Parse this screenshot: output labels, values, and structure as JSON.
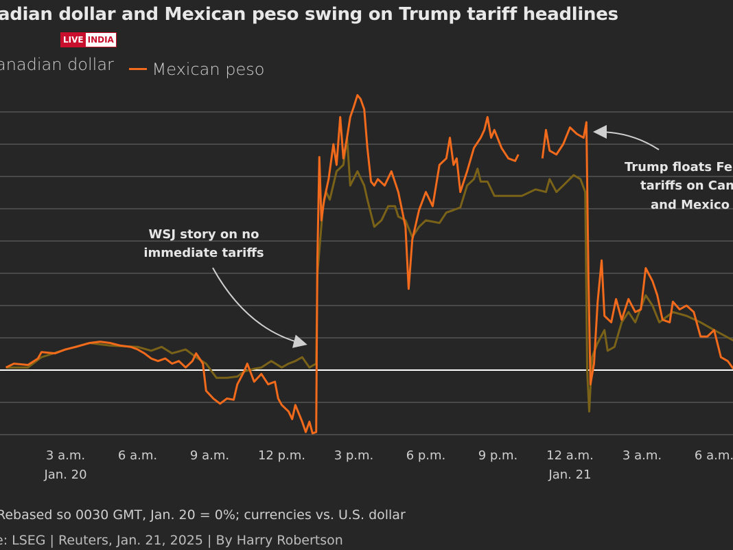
{
  "chart_data": {
    "type": "line",
    "title": "adian dollar and Mexican peso swing on Trump tariff headlines",
    "ylim": [
      -0.5,
      2.2
    ],
    "y_gridline_step": 0.25,
    "y_zero_line": true,
    "grid": true,
    "legend_placement": "top-left",
    "x_ticks": [
      {
        "t": "2025-01-20T03:00",
        "label": "3 a.m.",
        "sub": "Jan. 20"
      },
      {
        "t": "2025-01-20T06:00",
        "label": "6 a.m."
      },
      {
        "t": "2025-01-20T09:00",
        "label": "9 a.m."
      },
      {
        "t": "2025-01-20T12:00",
        "label": "12 p.m."
      },
      {
        "t": "2025-01-20T15:00",
        "label": "3 p.m."
      },
      {
        "t": "2025-01-20T18:00",
        "label": "6 p.m."
      },
      {
        "t": "2025-01-20T21:00",
        "label": "9 p.m."
      },
      {
        "t": "2025-01-21T00:00",
        "label": "12 a.m.",
        "sub": "Jan. 21"
      },
      {
        "t": "2025-01-21T03:00",
        "label": "3 a.m."
      },
      {
        "t": "2025-01-21T06:00",
        "label": "6 a.m."
      }
    ],
    "series": [
      {
        "name": "anadian dollar",
        "color": "#7a6318",
        "points": [
          [
            "2025-01-20T00:31",
            0.02
          ],
          [
            "2025-01-20T01:26",
            0.02
          ],
          [
            "2025-01-20T02:00",
            0.1
          ],
          [
            "2025-01-20T03:00",
            0.16
          ],
          [
            "2025-01-20T04:00",
            0.21
          ],
          [
            "2025-01-20T04:51",
            0.19
          ],
          [
            "2025-01-20T06:00",
            0.18
          ],
          [
            "2025-01-20T06:34",
            0.15
          ],
          [
            "2025-01-20T07:00",
            0.18
          ],
          [
            "2025-01-20T07:26",
            0.13
          ],
          [
            "2025-01-20T08:00",
            0.16
          ],
          [
            "2025-01-20T08:26",
            0.1
          ],
          [
            "2025-01-20T08:51",
            0.05
          ],
          [
            "2025-01-20T09:17",
            -0.06
          ],
          [
            "2025-01-20T09:43",
            -0.06
          ],
          [
            "2025-01-20T10:09",
            -0.05
          ],
          [
            "2025-01-20T10:26",
            -0.01
          ],
          [
            "2025-01-20T10:51",
            0.01
          ],
          [
            "2025-01-20T11:09",
            0.02
          ],
          [
            "2025-01-20T11:34",
            0.07
          ],
          [
            "2025-01-20T12:00",
            0.02
          ],
          [
            "2025-01-20T12:17",
            0.05
          ],
          [
            "2025-01-20T12:34",
            0.07
          ],
          [
            "2025-01-20T12:51",
            0.1
          ],
          [
            "2025-01-20T13:09",
            0.02
          ],
          [
            "2025-01-20T13:26",
            0.05
          ],
          [
            "2025-01-20T13:29",
            0.74
          ],
          [
            "2025-01-20T13:43",
            1.27
          ],
          [
            "2025-01-20T13:51",
            1.38
          ],
          [
            "2025-01-20T14:00",
            1.32
          ],
          [
            "2025-01-20T14:17",
            1.54
          ],
          [
            "2025-01-20T14:34",
            1.59
          ],
          [
            "2025-01-20T14:43",
            1.8
          ],
          [
            "2025-01-20T14:51",
            1.43
          ],
          [
            "2025-01-20T15:09",
            1.54
          ],
          [
            "2025-01-20T15:26",
            1.43
          ],
          [
            "2025-01-20T15:34",
            1.32
          ],
          [
            "2025-01-20T15:51",
            1.11
          ],
          [
            "2025-01-20T16:09",
            1.16
          ],
          [
            "2025-01-20T16:26",
            1.27
          ],
          [
            "2025-01-20T16:43",
            1.27
          ],
          [
            "2025-01-20T16:51",
            1.19
          ],
          [
            "2025-01-20T17:09",
            1.16
          ],
          [
            "2025-01-20T17:26",
            1.03
          ],
          [
            "2025-01-20T17:43",
            1.11
          ],
          [
            "2025-01-20T18:00",
            1.16
          ],
          [
            "2025-01-20T18:34",
            1.14
          ],
          [
            "2025-01-20T18:51",
            1.22
          ],
          [
            "2025-01-20T19:09",
            1.24
          ],
          [
            "2025-01-20T19:26",
            1.26
          ],
          [
            "2025-01-20T19:43",
            1.43
          ],
          [
            "2025-01-20T20:00",
            1.48
          ],
          [
            "2025-01-20T20:09",
            1.56
          ],
          [
            "2025-01-20T20:17",
            1.46
          ],
          [
            "2025-01-20T20:34",
            1.46
          ],
          [
            "2025-01-20T20:51",
            1.35
          ],
          [
            "2025-01-20T21:26",
            1.35
          ],
          [
            "2025-01-20T22:00",
            1.35
          ],
          [
            "2025-01-20T22:34",
            1.4
          ],
          [
            "2025-01-20T23:00",
            1.38
          ],
          [
            "2025-01-20T23:09",
            1.48
          ],
          [
            "2025-01-20T23:26",
            1.38
          ],
          [
            "2025-01-20T23:43",
            1.43
          ],
          [
            "2025-01-21T00:09",
            1.51
          ],
          [
            "2025-01-21T00:26",
            1.48
          ],
          [
            "2025-01-21T00:38",
            1.38
          ],
          [
            "2025-01-21T00:43",
            -0.01
          ],
          [
            "2025-01-21T00:48",
            -0.32
          ],
          [
            "2025-01-21T00:55",
            0.1
          ],
          [
            "2025-01-21T01:09",
            0.21
          ],
          [
            "2025-01-21T01:26",
            0.31
          ],
          [
            "2025-01-21T01:34",
            0.15
          ],
          [
            "2025-01-21T01:51",
            0.18
          ],
          [
            "2025-01-21T02:09",
            0.37
          ],
          [
            "2025-01-21T02:26",
            0.45
          ],
          [
            "2025-01-21T02:43",
            0.37
          ],
          [
            "2025-01-21T03:09",
            0.58
          ],
          [
            "2025-01-21T03:26",
            0.5
          ],
          [
            "2025-01-21T03:43",
            0.37
          ],
          [
            "2025-01-21T04:17",
            0.45
          ],
          [
            "2025-01-21T04:51",
            0.42
          ],
          [
            "2025-01-21T05:26",
            0.37
          ],
          [
            "2025-01-21T06:00",
            0.31
          ],
          [
            "2025-01-21T06:48",
            0.23
          ]
        ]
      },
      {
        "name": "Mexican peso",
        "color": "#f26a1b",
        "points": [
          [
            "2025-01-20T00:31",
            0.02
          ],
          [
            "2025-01-20T00:51",
            0.05
          ],
          [
            "2025-01-20T01:26",
            0.04
          ],
          [
            "2025-01-20T01:51",
            0.09
          ],
          [
            "2025-01-20T02:00",
            0.14
          ],
          [
            "2025-01-20T02:34",
            0.13
          ],
          [
            "2025-01-20T03:00",
            0.16
          ],
          [
            "2025-01-20T03:26",
            0.18
          ],
          [
            "2025-01-20T04:00",
            0.21
          ],
          [
            "2025-01-20T04:26",
            0.22
          ],
          [
            "2025-01-20T04:51",
            0.21
          ],
          [
            "2025-01-20T05:17",
            0.19
          ],
          [
            "2025-01-20T05:43",
            0.18
          ],
          [
            "2025-01-20T06:00",
            0.16
          ],
          [
            "2025-01-20T06:17",
            0.13
          ],
          [
            "2025-01-20T06:34",
            0.09
          ],
          [
            "2025-01-20T06:51",
            0.07
          ],
          [
            "2025-01-20T07:09",
            0.09
          ],
          [
            "2025-01-20T07:26",
            0.05
          ],
          [
            "2025-01-20T07:43",
            0.07
          ],
          [
            "2025-01-20T08:00",
            0.02
          ],
          [
            "2025-01-20T08:17",
            0.07
          ],
          [
            "2025-01-20T08:26",
            0.13
          ],
          [
            "2025-01-20T08:43",
            0.05
          ],
          [
            "2025-01-20T08:51",
            -0.16
          ],
          [
            "2025-01-20T09:09",
            -0.22
          ],
          [
            "2025-01-20T09:26",
            -0.26
          ],
          [
            "2025-01-20T09:43",
            -0.22
          ],
          [
            "2025-01-20T10:00",
            -0.23
          ],
          [
            "2025-01-20T10:09",
            -0.11
          ],
          [
            "2025-01-20T10:26",
            -0.01
          ],
          [
            "2025-01-20T10:34",
            0.05
          ],
          [
            "2025-01-20T10:51",
            -0.09
          ],
          [
            "2025-01-20T11:09",
            -0.03
          ],
          [
            "2025-01-20T11:26",
            -0.11
          ],
          [
            "2025-01-20T11:43",
            -0.09
          ],
          [
            "2025-01-20T11:51",
            -0.22
          ],
          [
            "2025-01-20T12:00",
            -0.27
          ],
          [
            "2025-01-20T12:17",
            -0.32
          ],
          [
            "2025-01-20T12:26",
            -0.38
          ],
          [
            "2025-01-20T12:34",
            -0.27
          ],
          [
            "2025-01-20T12:51",
            -0.4
          ],
          [
            "2025-01-20T13:00",
            -0.48
          ],
          [
            "2025-01-20T13:09",
            -0.4
          ],
          [
            "2025-01-20T13:17",
            -0.49
          ],
          [
            "2025-01-20T13:26",
            -0.48
          ],
          [
            "2025-01-20T13:29",
            0.85
          ],
          [
            "2025-01-20T13:34",
            1.65
          ],
          [
            "2025-01-20T13:39",
            1.16
          ],
          [
            "2025-01-20T13:46",
            1.32
          ],
          [
            "2025-01-20T13:57",
            1.48
          ],
          [
            "2025-01-20T14:09",
            1.75
          ],
          [
            "2025-01-20T14:17",
            1.59
          ],
          [
            "2025-01-20T14:26",
            1.96
          ],
          [
            "2025-01-20T14:34",
            1.64
          ],
          [
            "2025-01-20T14:43",
            1.8
          ],
          [
            "2025-01-20T14:51",
            1.96
          ],
          [
            "2025-01-20T15:00",
            2.04
          ],
          [
            "2025-01-20T15:09",
            2.13
          ],
          [
            "2025-01-20T15:17",
            2.1
          ],
          [
            "2025-01-20T15:26",
            2.02
          ],
          [
            "2025-01-20T15:34",
            1.72
          ],
          [
            "2025-01-20T15:43",
            1.46
          ],
          [
            "2025-01-20T15:51",
            1.43
          ],
          [
            "2025-01-20T16:00",
            1.48
          ],
          [
            "2025-01-20T16:17",
            1.43
          ],
          [
            "2025-01-20T16:34",
            1.54
          ],
          [
            "2025-01-20T16:51",
            1.38
          ],
          [
            "2025-01-20T17:09",
            1.11
          ],
          [
            "2025-01-20T17:17",
            0.63
          ],
          [
            "2025-01-20T17:26",
            1.01
          ],
          [
            "2025-01-20T17:43",
            1.24
          ],
          [
            "2025-01-20T18:00",
            1.38
          ],
          [
            "2025-01-20T18:17",
            1.27
          ],
          [
            "2025-01-20T18:34",
            1.59
          ],
          [
            "2025-01-20T18:51",
            1.64
          ],
          [
            "2025-01-20T19:00",
            1.8
          ],
          [
            "2025-01-20T19:09",
            1.59
          ],
          [
            "2025-01-20T19:17",
            1.64
          ],
          [
            "2025-01-20T19:26",
            1.38
          ],
          [
            "2025-01-20T19:43",
            1.54
          ],
          [
            "2025-01-20T20:00",
            1.72
          ],
          [
            "2025-01-20T20:17",
            1.8
          ],
          [
            "2025-01-20T20:26",
            1.86
          ],
          [
            "2025-01-20T20:34",
            1.96
          ],
          [
            "2025-01-20T20:43",
            1.8
          ],
          [
            "2025-01-20T20:51",
            1.86
          ],
          [
            "2025-01-20T21:09",
            1.72
          ],
          [
            "2025-01-20T21:26",
            1.64
          ],
          [
            "2025-01-20T21:43",
            1.62
          ],
          [
            "2025-01-20T21:51",
            1.67
          ],
          null,
          [
            "2025-01-20T22:51",
            1.64
          ],
          [
            "2025-01-20T23:00",
            1.86
          ],
          [
            "2025-01-20T23:09",
            1.7
          ],
          [
            "2025-01-20T23:26",
            1.67
          ],
          [
            "2025-01-20T23:43",
            1.75
          ],
          [
            "2025-01-21T00:00",
            1.88
          ],
          [
            "2025-01-21T00:17",
            1.83
          ],
          [
            "2025-01-21T00:34",
            1.8
          ],
          [
            "2025-01-21T00:41",
            1.92
          ],
          [
            "2025-01-21T00:46",
            0.74
          ],
          [
            "2025-01-21T00:51",
            -0.11
          ],
          [
            "2025-01-21T01:00",
            0.05
          ],
          [
            "2025-01-21T01:09",
            0.53
          ],
          [
            "2025-01-21T01:19",
            0.85
          ],
          [
            "2025-01-21T01:26",
            0.42
          ],
          [
            "2025-01-21T01:43",
            0.37
          ],
          [
            "2025-01-21T01:55",
            0.55
          ],
          [
            "2025-01-21T02:09",
            0.39
          ],
          [
            "2025-01-21T02:26",
            0.55
          ],
          [
            "2025-01-21T02:43",
            0.45
          ],
          [
            "2025-01-21T02:57",
            0.47
          ],
          [
            "2025-01-21T03:09",
            0.79
          ],
          [
            "2025-01-21T03:26",
            0.69
          ],
          [
            "2025-01-21T03:38",
            0.58
          ],
          [
            "2025-01-21T03:51",
            0.39
          ],
          [
            "2025-01-21T04:09",
            0.37
          ],
          [
            "2025-01-21T04:17",
            0.53
          ],
          [
            "2025-01-21T04:34",
            0.47
          ],
          [
            "2025-01-21T04:51",
            0.5
          ],
          [
            "2025-01-21T05:09",
            0.45
          ],
          [
            "2025-01-21T05:26",
            0.26
          ],
          [
            "2025-01-21T05:43",
            0.26
          ],
          [
            "2025-01-21T06:00",
            0.31
          ],
          [
            "2025-01-21T06:17",
            0.1
          ],
          [
            "2025-01-21T06:34",
            0.07
          ],
          [
            "2025-01-21T06:48",
            0.01
          ]
        ]
      }
    ],
    "annotations": [
      {
        "lines": [
          "WSJ story on no",
          "immediate tariffs"
        ]
      },
      {
        "lines": [
          "Trump floats Fe",
          "tariffs on Canad",
          "and Mexico"
        ]
      }
    ],
    "footnote": "Rebased so 0030 GMT, Jan. 20 = 0%; currencies vs. U.S. dollar",
    "source": "e: LSEG | Reuters, Jan. 21, 2025 | By Harry Robertson"
  },
  "logo": {
    "part1": "LIVE",
    "part2": "INDIA"
  },
  "colors": {
    "background": "#262626",
    "gridline": "#555555",
    "zero_line": "#ffffff",
    "text": "#cfcfcf"
  }
}
